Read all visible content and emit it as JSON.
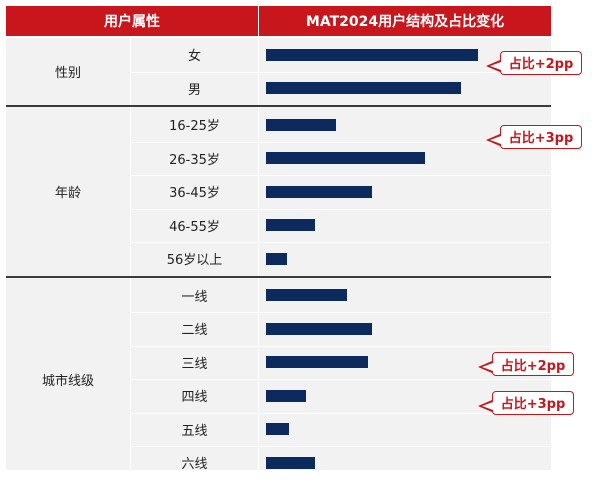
{
  "header": {
    "left": "用户属性",
    "right": "MAT2024用户结构及占比变化"
  },
  "chart_data": {
    "type": "bar",
    "title": "MAT2024用户结构及占比变化",
    "groups": [
      {
        "name": "性别",
        "categories": [
          "女",
          "男"
        ],
        "values": [
          100,
          92
        ]
      },
      {
        "name": "年龄",
        "categories": [
          "16-25岁",
          "26-35岁",
          "36-45岁",
          "46-55岁",
          "56岁以上"
        ],
        "values": [
          33,
          75,
          50,
          23,
          10
        ]
      },
      {
        "name": "城市线级",
        "categories": [
          "一线",
          "二线",
          "三线",
          "四线",
          "五线",
          "六线"
        ],
        "values": [
          38,
          50,
          48,
          19,
          11,
          23
        ]
      }
    ],
    "annotations": [
      {
        "category": "女",
        "text": "占比+2pp"
      },
      {
        "category": "16-25岁",
        "text": "占比+3pp"
      },
      {
        "category": "三线",
        "text": "占比+2pp"
      },
      {
        "category": "四线",
        "text": "占比+3pp"
      }
    ],
    "colors": {
      "bar": "#0d2a5e",
      "header": "#c8161d",
      "callout": "#c8161d",
      "panel": "#f2f2f2"
    }
  }
}
